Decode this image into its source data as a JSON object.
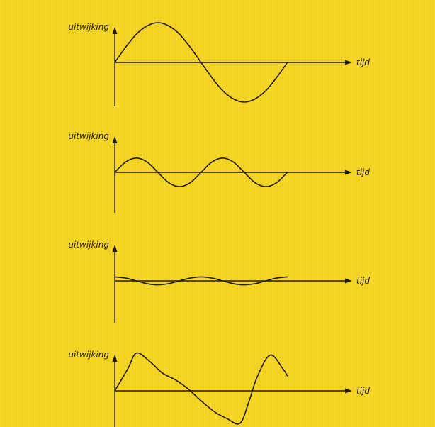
{
  "panel": {
    "background": "#f7d51f",
    "ink": "#1f1a14"
  },
  "chart_data": [
    {
      "type": "line",
      "title": "",
      "xlabel": "tijd",
      "ylabel": "uitwijking",
      "xlim": [
        0,
        5.5
      ],
      "ylim": [
        -1.3,
        1.3
      ],
      "grid": false,
      "series": [
        {
          "x": [
            0,
            0.25,
            0.5,
            0.75,
            1,
            1.25,
            1.5,
            1.75,
            2,
            2.25,
            2.5,
            2.75,
            3,
            3.25,
            3.5,
            3.75,
            4
          ],
          "values": [
            0,
            0.38,
            0.71,
            0.92,
            1.0,
            0.92,
            0.71,
            0.38,
            0,
            -0.38,
            -0.71,
            -0.92,
            -1.0,
            -0.92,
            -0.71,
            -0.38,
            0
          ]
        }
      ]
    },
    {
      "type": "line",
      "title": "",
      "xlabel": "tijd",
      "ylabel": "uitwijking",
      "xlim": [
        0,
        5.5
      ],
      "ylim": [
        -1.3,
        1.3
      ],
      "grid": false,
      "series": [
        {
          "x": [
            0,
            0.25,
            0.5,
            0.75,
            1,
            1.25,
            1.5,
            1.75,
            2,
            2.25,
            2.5,
            2.75,
            3,
            3.25,
            3.5,
            3.75,
            4
          ],
          "values": [
            0,
            0.26,
            0.36,
            0.26,
            0,
            -0.26,
            -0.36,
            -0.26,
            0,
            0.26,
            0.36,
            0.26,
            0,
            -0.26,
            -0.36,
            -0.26,
            0
          ]
        }
      ]
    },
    {
      "type": "line",
      "title": "",
      "xlabel": "tijd",
      "ylabel": "uitwijking",
      "xlim": [
        0,
        5.5
      ],
      "ylim": [
        -1.3,
        1.3
      ],
      "grid": false,
      "series": [
        {
          "x": [
            0,
            0.25,
            0.5,
            0.75,
            1,
            1.25,
            1.5,
            1.75,
            2,
            2.25,
            2.5,
            2.75,
            3,
            3.25,
            3.5,
            3.75,
            4
          ],
          "values": [
            0.1,
            0.07,
            0,
            -0.07,
            -0.1,
            -0.07,
            0,
            0.07,
            0.1,
            0.07,
            0,
            -0.07,
            -0.1,
            -0.07,
            0,
            0.07,
            0.1
          ]
        }
      ]
    },
    {
      "type": "line",
      "title": "",
      "xlabel": "tijd",
      "ylabel": "uitwijking",
      "xlim": [
        0,
        5.5
      ],
      "ylim": [
        -1.3,
        1.3
      ],
      "grid": false,
      "series": [
        {
          "x": [
            0,
            0.3,
            0.5,
            0.8,
            1.1,
            1.4,
            1.7,
            2.0,
            2.3,
            2.6,
            2.9,
            3.1,
            3.3,
            3.6,
            3.9,
            4.0
          ],
          "values": [
            0,
            0.55,
            0.95,
            0.75,
            0.45,
            0.28,
            0.05,
            -0.25,
            -0.52,
            -0.7,
            -0.82,
            -0.3,
            0.35,
            0.9,
            0.55,
            0.38
          ]
        }
      ]
    }
  ]
}
